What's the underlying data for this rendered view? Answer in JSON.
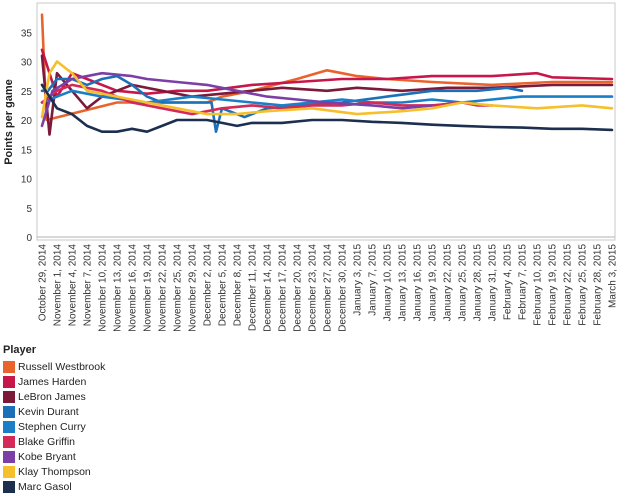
{
  "chart_data": {
    "type": "line",
    "xlabel": "",
    "ylabel": "Points per game",
    "ylim": [
      0,
      40
    ],
    "yticks": [
      0,
      5,
      10,
      15,
      20,
      25,
      30,
      35
    ],
    "grid": false,
    "legend_position": "bottom-left",
    "legend_title": "Player",
    "x_tick_labels": [
      "October 29, 2014",
      "November 1, 2014",
      "November 4, 2014",
      "November 7, 2014",
      "November 10, 2014",
      "November 13, 2014",
      "November 16, 2014",
      "November 19, 2014",
      "November 22, 2014",
      "November 25, 2014",
      "November 29, 2014",
      "December 2, 2014",
      "December 5, 2014",
      "December 8, 2014",
      "December 11, 2014",
      "December 14, 2014",
      "December 17, 2014",
      "December 20, 2014",
      "December 23, 2014",
      "December 27, 2014",
      "December 30, 2014",
      "January 3, 2015",
      "January 7, 2015",
      "January 10, 2015",
      "January 13, 2015",
      "January 16, 2015",
      "January 19, 2015",
      "January 22, 2015",
      "January 25, 2015",
      "January 28, 2015",
      "January 31, 2015",
      "February 4, 2015",
      "February 7, 2015",
      "February 10, 2015",
      "February 19, 2015",
      "February 22, 2015",
      "February 25, 2015",
      "February 28, 2015",
      "March 3, 2015"
    ],
    "series": [
      {
        "name": "Russell Westbrook",
        "color": "#e8642c",
        "points": [
          [
            0,
            38
          ],
          [
            0.3,
            20
          ],
          [
            5,
            23
          ],
          [
            11,
            23
          ],
          [
            12,
            24
          ],
          [
            14,
            25
          ],
          [
            17,
            27
          ],
          [
            19,
            28.5
          ],
          [
            20,
            28
          ],
          [
            21,
            27.5
          ],
          [
            23,
            27
          ],
          [
            26,
            26.5
          ],
          [
            30,
            26
          ],
          [
            34,
            26.5
          ],
          [
            38,
            26.5
          ]
        ]
      },
      {
        "name": "James Harden",
        "color": "#c7174a",
        "points": [
          [
            0,
            32
          ],
          [
            1,
            24
          ],
          [
            2,
            28
          ],
          [
            3,
            27
          ],
          [
            5,
            25
          ],
          [
            7,
            24.5
          ],
          [
            9,
            25
          ],
          [
            11,
            25
          ],
          [
            14,
            26
          ],
          [
            17,
            26.5
          ],
          [
            20,
            27
          ],
          [
            23,
            27
          ],
          [
            26,
            27.5
          ],
          [
            30,
            27.5
          ],
          [
            33,
            28
          ],
          [
            34,
            27.3
          ],
          [
            38,
            27
          ]
        ]
      },
      {
        "name": "LeBron James",
        "color": "#7c1a3a",
        "points": [
          [
            0,
            31
          ],
          [
            0.5,
            17.5
          ],
          [
            1,
            28
          ],
          [
            2,
            25
          ],
          [
            3,
            22
          ],
          [
            4,
            24
          ],
          [
            6,
            26
          ],
          [
            8,
            25
          ],
          [
            10,
            24
          ],
          [
            12,
            24.5
          ],
          [
            14,
            25
          ],
          [
            16,
            25.5
          ],
          [
            19,
            25
          ],
          [
            21,
            25.5
          ],
          [
            24,
            25
          ],
          [
            27,
            25.5
          ],
          [
            30,
            25.5
          ],
          [
            34,
            26
          ],
          [
            38,
            26
          ]
        ]
      },
      {
        "name": "Kevin Durant",
        "color": "#1c70b8",
        "points": [
          [
            0,
            25
          ],
          [
            0.4,
            25
          ],
          [
            1,
            27
          ],
          [
            2,
            27
          ],
          [
            3,
            26
          ],
          [
            4,
            27
          ],
          [
            5,
            27.5
          ],
          [
            6,
            26
          ],
          [
            7,
            24
          ],
          [
            8,
            23
          ],
          [
            10,
            23
          ],
          [
            11.3,
            23
          ],
          [
            11.6,
            18
          ],
          [
            12,
            22
          ],
          [
            13.5,
            20.5
          ],
          [
            15,
            22
          ],
          [
            17,
            22.5
          ],
          [
            20,
            23
          ],
          [
            23,
            24
          ],
          [
            26,
            25
          ],
          [
            29,
            25
          ],
          [
            31,
            25.5
          ],
          [
            32,
            25
          ]
        ]
      },
      {
        "name": "Stephen Curry",
        "color": "#1a7fc7",
        "points": [
          [
            0,
            23
          ],
          [
            1,
            24
          ],
          [
            2,
            25
          ],
          [
            4,
            24
          ],
          [
            7,
            23
          ],
          [
            10,
            24
          ],
          [
            12,
            23.5
          ],
          [
            14,
            23
          ],
          [
            16,
            22.5
          ],
          [
            18,
            23
          ],
          [
            20,
            23.5
          ],
          [
            22,
            23
          ],
          [
            24,
            23
          ],
          [
            26,
            23.5
          ],
          [
            28,
            23
          ],
          [
            30,
            23.5
          ],
          [
            32,
            24
          ],
          [
            36,
            24
          ],
          [
            38,
            24
          ]
        ]
      },
      {
        "name": "Blake Griffin",
        "color": "#d42a58",
        "points": [
          [
            0,
            23
          ],
          [
            1,
            25
          ],
          [
            2,
            26
          ],
          [
            4,
            25
          ],
          [
            6,
            23
          ],
          [
            8,
            22
          ],
          [
            10,
            21
          ],
          [
            12,
            22
          ],
          [
            14,
            22.5
          ],
          [
            16,
            22
          ],
          [
            18,
            22.5
          ],
          [
            20,
            22.5
          ],
          [
            22,
            23
          ],
          [
            24,
            22.5
          ],
          [
            26,
            22.5
          ],
          [
            28,
            23
          ],
          [
            29,
            22.5
          ],
          [
            30,
            22.5
          ]
        ]
      },
      {
        "name": "Kobe Bryant",
        "color": "#7b3fa5",
        "points": [
          [
            0,
            19
          ],
          [
            0.7,
            25
          ],
          [
            2,
            27
          ],
          [
            4,
            28
          ],
          [
            6,
            27.5
          ],
          [
            7,
            27
          ],
          [
            9,
            26.5
          ],
          [
            11,
            26
          ],
          [
            13,
            25
          ],
          [
            15,
            24
          ],
          [
            17,
            23.5
          ],
          [
            19,
            23
          ],
          [
            22,
            22.5
          ],
          [
            24,
            22
          ],
          [
            26,
            22.5
          ]
        ]
      },
      {
        "name": "Klay Thompson",
        "color": "#f6c02c",
        "points": [
          [
            0,
            20.5
          ],
          [
            0.5,
            28
          ],
          [
            1,
            30
          ],
          [
            2,
            28
          ],
          [
            3,
            25
          ],
          [
            5,
            24
          ],
          [
            7,
            23
          ],
          [
            9,
            22
          ],
          [
            11,
            21
          ],
          [
            13,
            21
          ],
          [
            15,
            21.5
          ],
          [
            18,
            22
          ],
          [
            21,
            21
          ],
          [
            24,
            21.5
          ],
          [
            26,
            22
          ],
          [
            28,
            23
          ],
          [
            30,
            22.5
          ],
          [
            33,
            22
          ],
          [
            36,
            22.5
          ],
          [
            38,
            22
          ]
        ]
      },
      {
        "name": "Marc Gasol",
        "color": "#1c2f4f",
        "points": [
          [
            0,
            26
          ],
          [
            1,
            22
          ],
          [
            2,
            21
          ],
          [
            3,
            19
          ],
          [
            4,
            18
          ],
          [
            5,
            18
          ],
          [
            6,
            18.5
          ],
          [
            7,
            18
          ],
          [
            8,
            19
          ],
          [
            9,
            20
          ],
          [
            10,
            20
          ],
          [
            11,
            20
          ],
          [
            12,
            19.5
          ],
          [
            13,
            19
          ],
          [
            14,
            19.5
          ],
          [
            16,
            19.5
          ],
          [
            18,
            20
          ],
          [
            20,
            20
          ],
          [
            22,
            19.7
          ],
          [
            24,
            19.5
          ],
          [
            26,
            19.2
          ],
          [
            28,
            19
          ],
          [
            30,
            18.8
          ],
          [
            32,
            18.7
          ],
          [
            34,
            18.5
          ],
          [
            36,
            18.5
          ],
          [
            38,
            18.3
          ]
        ]
      }
    ]
  }
}
